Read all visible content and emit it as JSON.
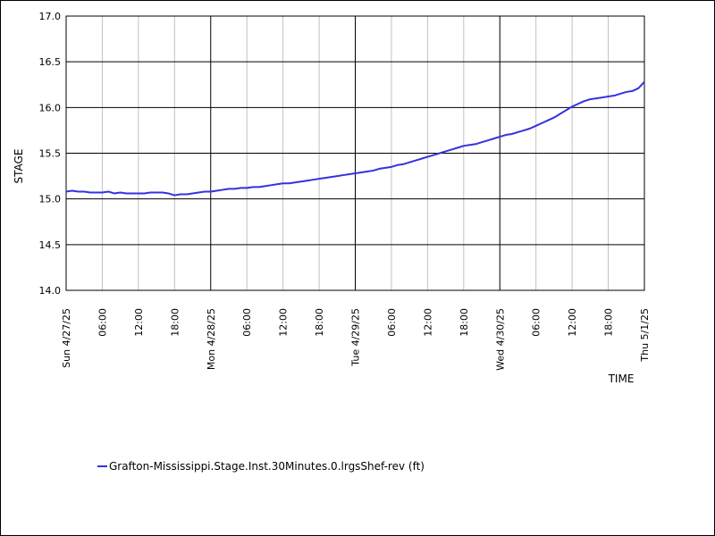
{
  "chart_data": {
    "type": "line",
    "title": "",
    "xlabel": "TIME",
    "ylabel": "STAGE",
    "ylim": [
      14.0,
      17.0
    ],
    "xlim": [
      "2025-04-27 00:00",
      "2025-05-01 00:00"
    ],
    "y_ticks": [
      "14.0",
      "14.5",
      "15.0",
      "15.5",
      "16.0",
      "16.5",
      "17.0"
    ],
    "x_ticks": [
      "Sun 4/27/25",
      "06:00",
      "12:00",
      "18:00",
      "Mon 4/28/25",
      "06:00",
      "12:00",
      "18:00",
      "Tue 4/29/25",
      "06:00",
      "12:00",
      "18:00",
      "Wed 4/30/25",
      "06:00",
      "12:00",
      "18:00",
      "Thu 5/1/25"
    ],
    "grid": true,
    "legend_position": "bottom-left",
    "series": [
      {
        "name": "Grafton-Mississippi.Stage.Inst.30Minutes.0.lrgsShef-rev (ft)",
        "color": "#3333dd",
        "x": [
          "2025-04-27 00:00",
          "2025-04-27 01:00",
          "2025-04-27 02:00",
          "2025-04-27 03:00",
          "2025-04-27 04:00",
          "2025-04-27 05:00",
          "2025-04-27 06:00",
          "2025-04-27 07:00",
          "2025-04-27 08:00",
          "2025-04-27 09:00",
          "2025-04-27 10:00",
          "2025-04-27 11:00",
          "2025-04-27 12:00",
          "2025-04-27 13:00",
          "2025-04-27 14:00",
          "2025-04-27 15:00",
          "2025-04-27 16:00",
          "2025-04-27 17:00",
          "2025-04-27 18:00",
          "2025-04-27 19:00",
          "2025-04-27 20:00",
          "2025-04-27 21:00",
          "2025-04-27 22:00",
          "2025-04-27 23:00",
          "2025-04-28 00:00",
          "2025-04-28 01:00",
          "2025-04-28 02:00",
          "2025-04-28 03:00",
          "2025-04-28 04:00",
          "2025-04-28 05:00",
          "2025-04-28 06:00",
          "2025-04-28 07:00",
          "2025-04-28 08:00",
          "2025-04-28 09:00",
          "2025-04-28 10:00",
          "2025-04-28 11:00",
          "2025-04-28 12:00",
          "2025-04-28 13:00",
          "2025-04-28 14:00",
          "2025-04-28 15:00",
          "2025-04-28 16:00",
          "2025-04-28 17:00",
          "2025-04-28 18:00",
          "2025-04-28 19:00",
          "2025-04-28 20:00",
          "2025-04-28 21:00",
          "2025-04-28 22:00",
          "2025-04-28 23:00",
          "2025-04-29 00:00",
          "2025-04-29 01:00",
          "2025-04-29 02:00",
          "2025-04-29 03:00",
          "2025-04-29 04:00",
          "2025-04-29 05:00",
          "2025-04-29 06:00",
          "2025-04-29 07:00",
          "2025-04-29 08:00",
          "2025-04-29 09:00",
          "2025-04-29 10:00",
          "2025-04-29 11:00",
          "2025-04-29 12:00",
          "2025-04-29 13:00",
          "2025-04-29 14:00",
          "2025-04-29 15:00",
          "2025-04-29 16:00",
          "2025-04-29 17:00",
          "2025-04-29 18:00",
          "2025-04-29 19:00",
          "2025-04-29 20:00",
          "2025-04-29 21:00",
          "2025-04-29 22:00",
          "2025-04-29 23:00",
          "2025-04-30 00:00",
          "2025-04-30 01:00",
          "2025-04-30 02:00",
          "2025-04-30 03:00",
          "2025-04-30 04:00",
          "2025-04-30 05:00",
          "2025-04-30 06:00",
          "2025-04-30 07:00",
          "2025-04-30 08:00",
          "2025-04-30 09:00",
          "2025-04-30 10:00",
          "2025-04-30 11:00",
          "2025-04-30 12:00",
          "2025-04-30 13:00",
          "2025-04-30 14:00",
          "2025-04-30 15:00",
          "2025-04-30 16:00",
          "2025-04-30 17:00",
          "2025-04-30 18:00",
          "2025-04-30 19:00",
          "2025-04-30 20:00",
          "2025-04-30 21:00",
          "2025-04-30 22:00",
          "2025-04-30 23:00",
          "2025-05-01 00:00"
        ],
        "values": [
          15.08,
          15.09,
          15.08,
          15.08,
          15.07,
          15.07,
          15.07,
          15.08,
          15.06,
          15.07,
          15.06,
          15.06,
          15.06,
          15.06,
          15.07,
          15.07,
          15.07,
          15.06,
          15.04,
          15.05,
          15.05,
          15.06,
          15.07,
          15.08,
          15.08,
          15.09,
          15.1,
          15.11,
          15.11,
          15.12,
          15.12,
          15.13,
          15.13,
          15.14,
          15.15,
          15.16,
          15.17,
          15.17,
          15.18,
          15.19,
          15.2,
          15.21,
          15.22,
          15.23,
          15.24,
          15.25,
          15.26,
          15.27,
          15.28,
          15.29,
          15.3,
          15.31,
          15.33,
          15.34,
          15.35,
          15.37,
          15.38,
          15.4,
          15.42,
          15.44,
          15.46,
          15.48,
          15.5,
          15.52,
          15.54,
          15.56,
          15.58,
          15.59,
          15.6,
          15.62,
          15.64,
          15.66,
          15.68,
          15.7,
          15.71,
          15.73,
          15.75,
          15.77,
          15.8,
          15.83,
          15.86,
          15.89,
          15.93,
          15.97,
          16.01,
          16.04,
          16.07,
          16.09,
          16.1,
          16.11,
          16.12,
          16.13,
          16.15,
          16.17,
          16.18,
          16.21,
          16.28
        ]
      }
    ]
  }
}
